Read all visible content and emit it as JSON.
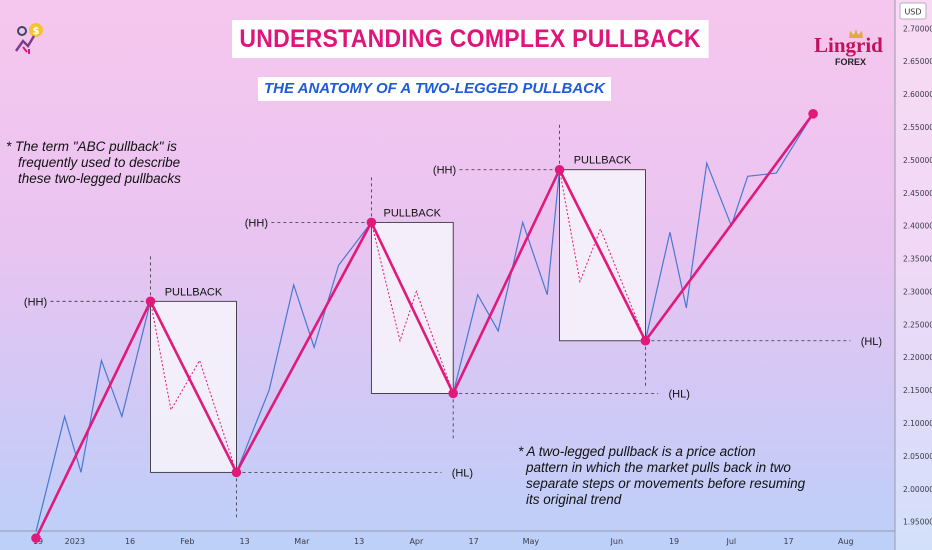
{
  "header": {
    "title": "UNDERSTANDING COMPLEX PULLBACK",
    "subtitle": "THE ANATOMY OF A TWO-LEGGED PULLBACK"
  },
  "notes": {
    "note1": [
      "*  The term \"ABC pullback\" is",
      "frequently used to describe",
      "these two-legged pullbacks"
    ],
    "note2": [
      "* A two-legged pullback is a price action",
      "pattern in which the market pulls back in two",
      "separate steps or movements before resuming",
      "its original trend"
    ]
  },
  "brand": {
    "name": "Lingrid",
    "sub": "FOREX",
    "logo_icon": "dollar-growth-icon"
  },
  "colors": {
    "main_line": "#e0197a",
    "price_line": "#4a78d0",
    "dotted_leg": "#e0197a",
    "box_fill": "#f5f2fb",
    "box_stroke": "#222222"
  },
  "chart_data": {
    "type": "line",
    "currency": "USD",
    "ylim": [
      1.91,
      2.74
    ],
    "y_ticks": [
      1.95,
      2.0,
      2.05,
      2.1,
      2.15,
      2.2,
      2.25,
      2.3,
      2.35,
      2.4,
      2.45,
      2.5,
      2.55,
      2.6,
      2.65,
      2.7
    ],
    "y_tick_labels": [
      "1.95000",
      "2.00000",
      "2.05000",
      "2.10000",
      "2.15000",
      "2.20000",
      "2.25000",
      "2.30000",
      "2.35000",
      "2.40000",
      "2.45000",
      "2.50000",
      "2.55000",
      "2.60000",
      "2.65000",
      "2.70000"
    ],
    "x_ticks": [
      {
        "label": "19",
        "x": 0.5
      },
      {
        "label": "2023",
        "x": 9.5
      },
      {
        "label": "16",
        "x": 23
      },
      {
        "label": "Feb",
        "x": 37
      },
      {
        "label": "13",
        "x": 51
      },
      {
        "label": "Mar",
        "x": 65
      },
      {
        "label": "13",
        "x": 79
      },
      {
        "label": "Apr",
        "x": 93
      },
      {
        "label": "17",
        "x": 107
      },
      {
        "label": "May",
        "x": 121
      },
      {
        "label": "Jun",
        "x": 142
      },
      {
        "label": "19",
        "x": 156
      },
      {
        "label": "Jul",
        "x": 170
      },
      {
        "label": "17",
        "x": 184
      },
      {
        "label": "Aug",
        "x": 198
      }
    ],
    "series": [
      {
        "role": "swing",
        "x": [
          0,
          28,
          49,
          82,
          102,
          128,
          149,
          190
        ],
        "y": [
          1.925,
          2.285,
          2.025,
          2.405,
          2.145,
          2.485,
          2.225,
          2.57
        ]
      },
      {
        "role": "price",
        "x": [
          0,
          7,
          11,
          16,
          21,
          28,
          49,
          57,
          63,
          68,
          74,
          82,
          102,
          108,
          113,
          119,
          125,
          128,
          149,
          155,
          159,
          164,
          170,
          174,
          181,
          190
        ],
        "y": [
          1.935,
          2.11,
          2.025,
          2.195,
          2.11,
          2.285,
          2.025,
          2.15,
          2.31,
          2.215,
          2.34,
          2.405,
          2.145,
          2.295,
          2.24,
          2.405,
          2.295,
          2.485,
          2.225,
          2.39,
          2.275,
          2.495,
          2.4,
          2.475,
          2.48,
          2.57
        ]
      },
      {
        "role": "abc-legs",
        "segments": [
          {
            "x": [
              28,
              33,
              40,
              49
            ],
            "y": [
              2.285,
              2.12,
              2.195,
              2.025
            ]
          },
          {
            "x": [
              82,
              89,
              93,
              102
            ],
            "y": [
              2.405,
              2.225,
              2.3,
              2.145
            ]
          },
          {
            "x": [
              128,
              133,
              138,
              149
            ],
            "y": [
              2.485,
              2.315,
              2.395,
              2.225
            ]
          }
        ]
      }
    ],
    "pullback_boxes": [
      {
        "label": "PULLBACK",
        "x": [
          28,
          49
        ],
        "y": [
          2.025,
          2.285
        ]
      },
      {
        "label": "PULLBACK",
        "x": [
          82,
          102
        ],
        "y": [
          2.145,
          2.405
        ]
      },
      {
        "label": "PULLBACK",
        "x": [
          128,
          149
        ],
        "y": [
          2.225,
          2.485
        ]
      }
    ],
    "annotations": [
      {
        "text": "(HH)",
        "x": 28,
        "y": 2.285,
        "level": "high"
      },
      {
        "text": "(HL)",
        "x": 49,
        "y": 2.025,
        "level": "low"
      },
      {
        "text": "(HH)",
        "x": 82,
        "y": 2.405,
        "level": "high"
      },
      {
        "text": "(HL)",
        "x": 102,
        "y": 2.145,
        "level": "low"
      },
      {
        "text": "(HH)",
        "x": 128,
        "y": 2.485,
        "level": "high"
      },
      {
        "text": "(HL)",
        "x": 149,
        "y": 2.225,
        "level": "low"
      }
    ]
  }
}
